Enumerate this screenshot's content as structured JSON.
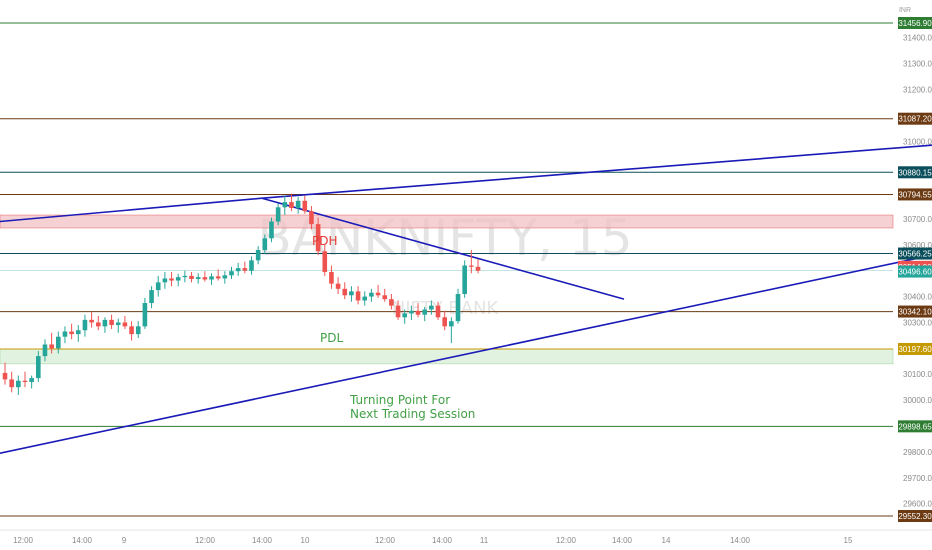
{
  "chart_data": {
    "type": "candlestick",
    "watermark": {
      "symbol": "BANKNIFTY, 15",
      "name": "NIFTY BANK",
      "color": "#dcdcdc"
    },
    "logo_text": "INR",
    "y_axis": {
      "ticks": [
        "31400.00",
        "31300.00",
        "31200.00",
        "31000.00",
        "30700.00",
        "30600.00",
        "30400.00",
        "30300.00",
        "30100.00",
        "30000.00",
        "29800.00",
        "29700.00",
        "29600.00"
      ],
      "ylim": [
        29530,
        31500
      ]
    },
    "x_axis": {
      "ticks": [
        "12:00",
        "14:00",
        "9",
        "12:00",
        "14:00",
        "10",
        "12:00",
        "14:00",
        "11",
        "12:00",
        "14:00",
        "14",
        "14:00",
        "15"
      ]
    },
    "levels": [
      {
        "value": 31456.9,
        "label": "31456.90",
        "color": "#2e7d32"
      },
      {
        "value": 31087.2,
        "label": "31087.20",
        "color": "#6d3b13"
      },
      {
        "value": 30880.15,
        "label": "30880.15",
        "color": "#0b4f5c"
      },
      {
        "value": 30794.55,
        "label": "30794.55",
        "color": "#6d3b13"
      },
      {
        "value": 30566.25,
        "label": "30566.25",
        "color": "#0b4f5c"
      },
      {
        "value": 30342.1,
        "label": "30342.10",
        "color": "#6d3b13"
      },
      {
        "value": 30197.6,
        "label": "30197.60",
        "color": "#c49a00"
      },
      {
        "value": 29898.65,
        "label": "29898.65",
        "color": "#2e7d32"
      },
      {
        "value": 29552.3,
        "label": "29552.30",
        "color": "#6d3b13"
      }
    ],
    "price_labels": [
      {
        "value": 30514.9,
        "label": "30514.90",
        "color": "#ef5350"
      },
      {
        "value": 30496.6,
        "label": "30496.60",
        "color": "#26a69a"
      }
    ],
    "zones": [
      {
        "from": 30665,
        "to": 30715,
        "color": "#f3c1c4",
        "border": "#e57373"
      },
      {
        "from": 30140,
        "to": 30197.6,
        "color": "#d8edd5",
        "border": "#a5d6a7"
      }
    ],
    "trendlines": [
      {
        "from": [
          0,
          30690
        ],
        "to": [
          262,
          30780
        ],
        "color": "#1a1ab8"
      },
      {
        "from": [
          262,
          30780
        ],
        "to": [
          932,
          30985
        ],
        "color": "#1a1ab8"
      },
      {
        "from": [
          262,
          30780
        ],
        "to": [
          624,
          30390
        ],
        "color": "#1a1ab8"
      },
      {
        "from": [
          0,
          29795
        ],
        "to": [
          932,
          30560
        ],
        "color": "#1a1ab8"
      }
    ],
    "annotations": [
      {
        "text": "PDH",
        "color": "#e53935"
      },
      {
        "text": "PDL",
        "color": "#43a047"
      },
      {
        "text": "Turning Point For",
        "color": "#43a047"
      },
      {
        "text": "Next Trading Session",
        "color": "#43a047"
      }
    ],
    "candles": [
      [
        30105,
        30145,
        30060,
        30080
      ],
      [
        30080,
        30110,
        30030,
        30050
      ],
      [
        30050,
        30095,
        30020,
        30075
      ],
      [
        30075,
        30110,
        30050,
        30070
      ],
      [
        30070,
        30095,
        30045,
        30085
      ],
      [
        30085,
        30190,
        30070,
        30170
      ],
      [
        30170,
        30235,
        30150,
        30215
      ],
      [
        30215,
        30260,
        30180,
        30200
      ],
      [
        30200,
        30265,
        30180,
        30245
      ],
      [
        30245,
        30285,
        30220,
        30265
      ],
      [
        30265,
        30295,
        30235,
        30255
      ],
      [
        30255,
        30290,
        30225,
        30270
      ],
      [
        30270,
        30330,
        30245,
        30310
      ],
      [
        30310,
        30340,
        30280,
        30300
      ],
      [
        30300,
        30325,
        30270,
        30285
      ],
      [
        30285,
        30320,
        30260,
        30310
      ],
      [
        30310,
        30330,
        30275,
        30290
      ],
      [
        30290,
        30315,
        30260,
        30300
      ],
      [
        30300,
        30325,
        30275,
        30285
      ],
      [
        30285,
        30305,
        30230,
        30255
      ],
      [
        30255,
        30305,
        30240,
        30285
      ],
      [
        30285,
        30395,
        30275,
        30375
      ],
      [
        30375,
        30440,
        30355,
        30425
      ],
      [
        30425,
        30480,
        30400,
        30455
      ],
      [
        30455,
        30495,
        30430,
        30470
      ],
      [
        30470,
        30495,
        30440,
        30462
      ],
      [
        30462,
        30488,
        30440,
        30475
      ],
      [
        30475,
        30500,
        30455,
        30480
      ],
      [
        30480,
        30495,
        30455,
        30468
      ],
      [
        30468,
        30490,
        30450,
        30475
      ],
      [
        30475,
        30498,
        30458,
        30466
      ],
      [
        30466,
        30490,
        30445,
        30478
      ],
      [
        30478,
        30505,
        30462,
        30470
      ],
      [
        30470,
        30498,
        30450,
        30482
      ],
      [
        30482,
        30515,
        30468,
        30498
      ],
      [
        30498,
        30530,
        30480,
        30510
      ],
      [
        30510,
        30535,
        30490,
        30500
      ],
      [
        30500,
        30555,
        30485,
        30540
      ],
      [
        30540,
        30595,
        30525,
        30580
      ],
      [
        30580,
        30640,
        30565,
        30625
      ],
      [
        30625,
        30705,
        30610,
        30690
      ],
      [
        30690,
        30760,
        30675,
        30745
      ],
      [
        30745,
        30790,
        30715,
        30765
      ],
      [
        30765,
        30798,
        30730,
        30742
      ],
      [
        30742,
        30785,
        30720,
        30770
      ],
      [
        30770,
        30790,
        30720,
        30730
      ],
      [
        30730,
        30750,
        30660,
        30680
      ],
      [
        30680,
        30705,
        30560,
        30575
      ],
      [
        30575,
        30600,
        30480,
        30495
      ],
      [
        30495,
        30520,
        30430,
        30450
      ],
      [
        30450,
        30475,
        30410,
        30430
      ],
      [
        30430,
        30455,
        30390,
        30405
      ],
      [
        30405,
        30440,
        30380,
        30420
      ],
      [
        30420,
        30440,
        30370,
        30385
      ],
      [
        30385,
        30420,
        30365,
        30400
      ],
      [
        30400,
        30430,
        30380,
        30415
      ],
      [
        30415,
        30445,
        30395,
        30405
      ],
      [
        30405,
        30430,
        30380,
        30390
      ],
      [
        30390,
        30410,
        30350,
        30365
      ],
      [
        30365,
        30385,
        30310,
        30320
      ],
      [
        30320,
        30350,
        30295,
        30335
      ],
      [
        30335,
        30365,
        30310,
        30345
      ],
      [
        30345,
        30375,
        30320,
        30330
      ],
      [
        30330,
        30360,
        30305,
        30350
      ],
      [
        30350,
        30385,
        30330,
        30365
      ],
      [
        30365,
        30380,
        30310,
        30320
      ],
      [
        30320,
        30345,
        30270,
        30285
      ],
      [
        30285,
        30320,
        30220,
        30305
      ],
      [
        30305,
        30430,
        30295,
        30410
      ],
      [
        30410,
        30540,
        30395,
        30520
      ],
      [
        30520,
        30580,
        30490,
        30515
      ],
      [
        30515,
        30545,
        30490,
        30500
      ]
    ]
  }
}
